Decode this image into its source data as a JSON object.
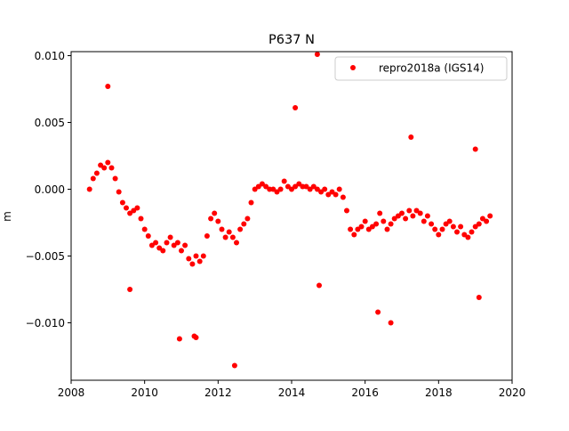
{
  "chart_data": {
    "type": "scatter",
    "title": "P637 N",
    "xlabel": "",
    "ylabel": "m",
    "xlim": [
      2008.0,
      2020.0
    ],
    "ylim": [
      -0.0143,
      0.0103
    ],
    "x_ticks": [
      2008,
      2010,
      2012,
      2014,
      2016,
      2018,
      2020
    ],
    "x_tick_labels": [
      "2008",
      "2010",
      "2012",
      "2014",
      "2016",
      "2018",
      "2020"
    ],
    "y_ticks": [
      -0.01,
      -0.005,
      0.0,
      0.005,
      0.01
    ],
    "y_tick_labels": [
      "−0.010",
      "−0.005",
      "0.000",
      "0.005",
      "0.010"
    ],
    "grid": false,
    "legend_position": "top-right",
    "series": [
      {
        "name": "repro2018a (IGS14)",
        "color": "#ff0000",
        "marker": "circle",
        "x": [
          2008.5,
          2008.6,
          2008.7,
          2008.8,
          2008.9,
          2009.0,
          2009.1,
          2009.2,
          2009.3,
          2009.4,
          2009.5,
          2009.6,
          2009.7,
          2009.8,
          2009.9,
          2010.0,
          2010.1,
          2010.2,
          2010.3,
          2010.4,
          2010.5,
          2010.6,
          2010.7,
          2010.8,
          2010.9,
          2011.0,
          2011.1,
          2011.2,
          2011.3,
          2011.4,
          2011.5,
          2011.6,
          2011.7,
          2011.8,
          2011.9,
          2012.0,
          2012.1,
          2012.2,
          2012.3,
          2012.4,
          2012.5,
          2012.6,
          2012.7,
          2012.8,
          2012.9,
          2013.0,
          2013.1,
          2013.2,
          2013.3,
          2013.4,
          2013.5,
          2013.6,
          2013.7,
          2013.8,
          2013.9,
          2014.0,
          2014.1,
          2014.2,
          2014.3,
          2014.4,
          2014.5,
          2014.6,
          2014.7,
          2014.8,
          2014.9,
          2015.0,
          2015.1,
          2015.2,
          2015.3,
          2015.4,
          2015.5,
          2015.6,
          2015.7,
          2015.8,
          2015.9,
          2016.0,
          2016.1,
          2016.2,
          2016.3,
          2016.4,
          2016.5,
          2016.6,
          2016.7,
          2016.8,
          2016.9,
          2017.0,
          2017.1,
          2017.2,
          2017.3,
          2017.4,
          2017.5,
          2017.6,
          2017.7,
          2017.8,
          2017.9,
          2018.0,
          2018.1,
          2018.2,
          2018.3,
          2018.4,
          2018.5,
          2018.6,
          2018.7,
          2018.8,
          2018.9,
          2019.0,
          2019.1,
          2019.2,
          2019.3,
          2019.4,
          2009.0,
          2009.6,
          2010.95,
          2011.35,
          2011.4,
          2012.45,
          2014.7,
          2014.75,
          2014.1,
          2016.35,
          2016.7,
          2017.25,
          2019.1,
          2019.0
        ],
        "y": [
          0.0,
          0.0008,
          0.0012,
          0.0018,
          0.0016,
          0.002,
          0.0016,
          0.0008,
          -0.0002,
          -0.001,
          -0.0014,
          -0.0018,
          -0.0016,
          -0.0014,
          -0.0022,
          -0.003,
          -0.0035,
          -0.0042,
          -0.004,
          -0.0044,
          -0.0046,
          -0.004,
          -0.0036,
          -0.0042,
          -0.004,
          -0.0046,
          -0.0042,
          -0.0052,
          -0.0056,
          -0.005,
          -0.0054,
          -0.005,
          -0.0035,
          -0.0022,
          -0.0018,
          -0.0024,
          -0.003,
          -0.0036,
          -0.0032,
          -0.0036,
          -0.004,
          -0.003,
          -0.0026,
          -0.0022,
          -0.001,
          0.0,
          0.0002,
          0.0004,
          0.0002,
          0.0,
          0.0,
          -0.0002,
          0.0,
          0.0006,
          0.0002,
          0.0,
          0.0002,
          0.0004,
          0.0002,
          0.0002,
          0.0,
          0.0002,
          0.0,
          -0.0002,
          0.0,
          -0.0004,
          -0.0002,
          -0.0004,
          0.0,
          -0.0006,
          -0.0016,
          -0.003,
          -0.0034,
          -0.003,
          -0.0028,
          -0.0024,
          -0.003,
          -0.0028,
          -0.0026,
          -0.0018,
          -0.0024,
          -0.003,
          -0.0026,
          -0.0022,
          -0.002,
          -0.0018,
          -0.0022,
          -0.0016,
          -0.002,
          -0.0016,
          -0.0018,
          -0.0024,
          -0.002,
          -0.0026,
          -0.003,
          -0.0034,
          -0.003,
          -0.0026,
          -0.0024,
          -0.0028,
          -0.0032,
          -0.0028,
          -0.0034,
          -0.0036,
          -0.0032,
          -0.0028,
          -0.0026,
          -0.0022,
          -0.0024,
          -0.002,
          0.0077,
          -0.0075,
          -0.0112,
          -0.011,
          -0.0111,
          -0.0132,
          0.0101,
          -0.0072,
          0.0061,
          -0.0092,
          -0.01,
          0.0039,
          -0.0081,
          0.003
        ]
      }
    ]
  }
}
